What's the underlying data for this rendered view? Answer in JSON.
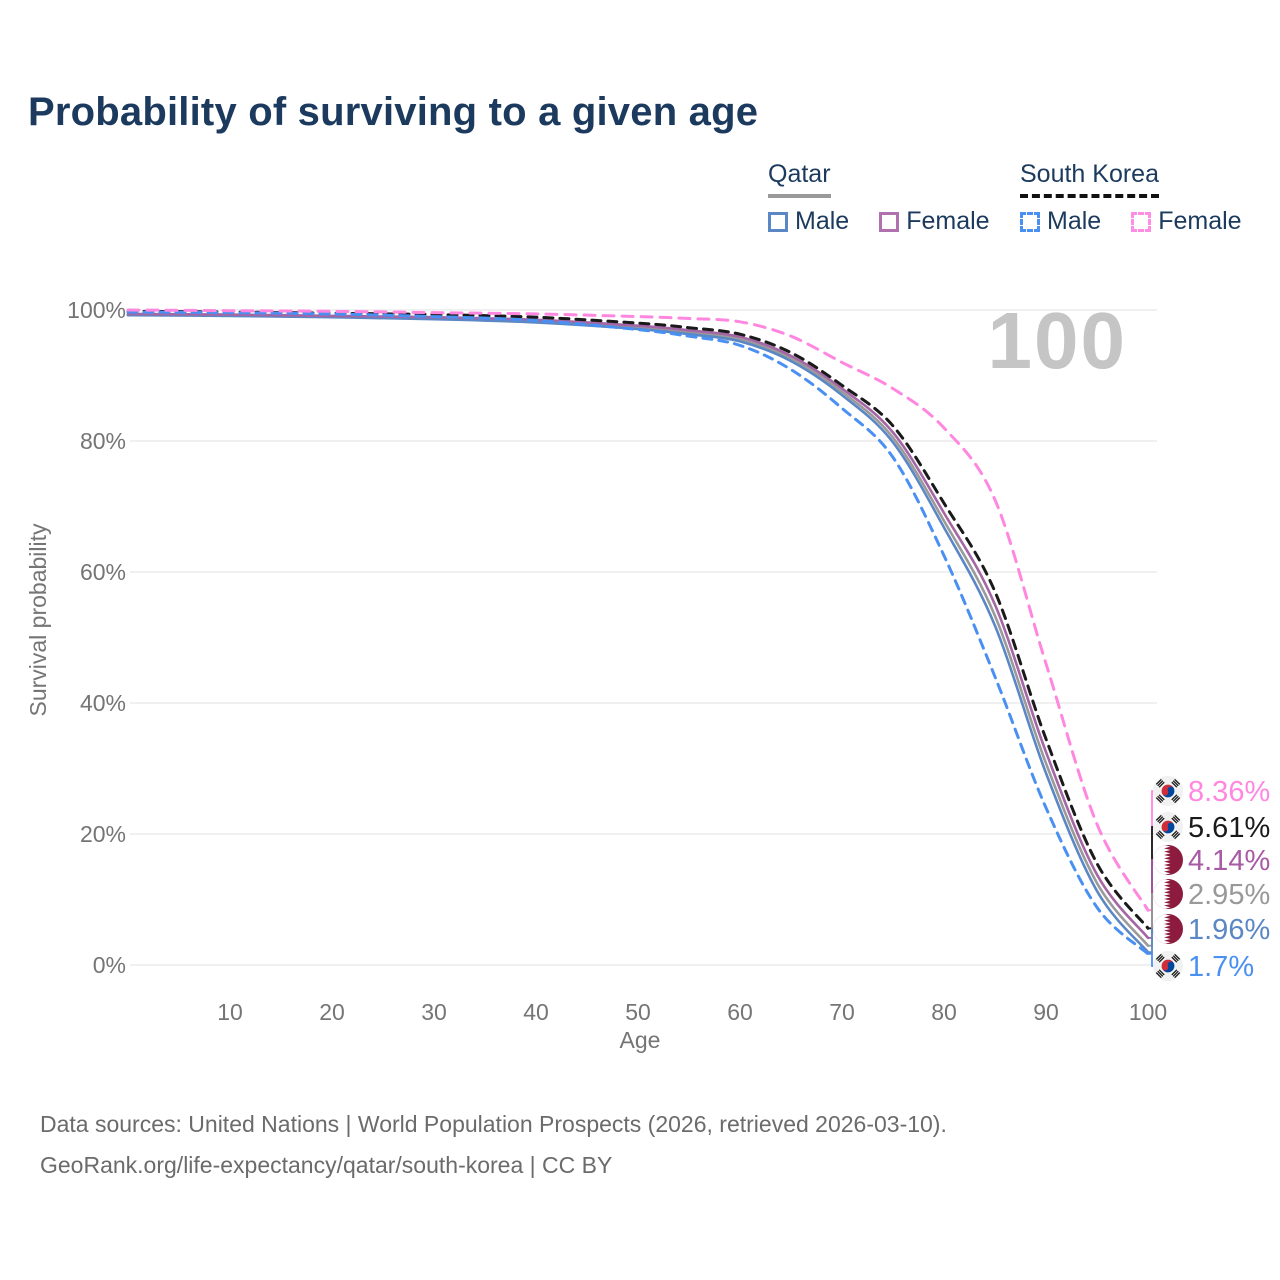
{
  "title": "Probability of surviving to a given age",
  "legend": {
    "groups": [
      {
        "country": "Qatar",
        "underline_style": "solid",
        "underline_color": "#9a9a9a",
        "items": [
          {
            "label": "Male",
            "color": "#5b87c5",
            "dashed": false
          },
          {
            "label": "Female",
            "color": "#b072ae",
            "dashed": false
          }
        ]
      },
      {
        "country": "South Korea",
        "underline_style": "dashed",
        "underline_color": "#111111",
        "items": [
          {
            "label": "Male",
            "color": "#4a90f2",
            "dashed": true
          },
          {
            "label": "Female",
            "color": "#ff8de4",
            "dashed": true
          }
        ]
      }
    ]
  },
  "watermark": "100",
  "axes": {
    "y_label": "Survival probability",
    "x_label": "Age",
    "y_ticks": [
      "0%",
      "20%",
      "40%",
      "60%",
      "80%",
      "100%"
    ],
    "x_ticks": [
      "10",
      "20",
      "30",
      "40",
      "50",
      "60",
      "70",
      "80",
      "90",
      "100"
    ]
  },
  "chart_data": {
    "type": "line",
    "title": "Probability of surviving to a given age",
    "xlabel": "Age",
    "ylabel": "Survival probability",
    "xlim": [
      0,
      100
    ],
    "ylim": [
      0,
      100
    ],
    "grid": "horizontal",
    "legend_position": "top-right",
    "x": [
      0,
      10,
      20,
      30,
      40,
      50,
      55,
      60,
      65,
      70,
      75,
      80,
      85,
      90,
      95,
      100
    ],
    "series": [
      {
        "name": "Qatar combined",
        "country": "Qatar",
        "color": "#9a9a9a",
        "dashed": false,
        "values": [
          99.3,
          99.2,
          99.0,
          98.7,
          98.3,
          97.3,
          96.6,
          95.5,
          92.6,
          87.5,
          80.5,
          67.8,
          53.3,
          30.8,
          12.5,
          2.95
        ]
      },
      {
        "name": "Qatar Male",
        "country": "Qatar",
        "color": "#5b87c5",
        "dashed": false,
        "values": [
          99.2,
          99.1,
          98.9,
          98.6,
          98.1,
          97.1,
          96.3,
          95.2,
          92.2,
          87.0,
          79.8,
          66.8,
          51.8,
          29.3,
          11.3,
          1.96
        ]
      },
      {
        "name": "Qatar Female",
        "country": "Qatar",
        "color": "#a566a5",
        "dashed": false,
        "values": [
          99.4,
          99.3,
          99.1,
          98.9,
          98.5,
          97.6,
          96.9,
          95.9,
          93.0,
          88.0,
          81.3,
          69.0,
          55.0,
          32.5,
          13.8,
          4.14
        ]
      },
      {
        "name": "South Korea combined",
        "country": "South Korea",
        "color": "#1a1a1a",
        "dashed": true,
        "values": [
          99.8,
          99.7,
          99.5,
          99.3,
          98.9,
          98.0,
          97.3,
          96.3,
          93.5,
          88.5,
          82.3,
          70.5,
          57.0,
          34.5,
          15.5,
          5.61
        ]
      },
      {
        "name": "South Korea Male",
        "country": "South Korea",
        "color": "#4a90f2",
        "dashed": true,
        "values": [
          99.7,
          99.6,
          99.4,
          99.0,
          98.4,
          97.0,
          96.0,
          94.6,
          90.9,
          85.0,
          77.5,
          62.5,
          44.0,
          24.0,
          8.8,
          1.7
        ]
      },
      {
        "name": "South Korea Female",
        "country": "South Korea",
        "color": "#ff87e0",
        "dashed": true,
        "values": [
          100,
          99.9,
          99.8,
          99.6,
          99.4,
          99.0,
          98.7,
          98.2,
          96.0,
          92.0,
          88.0,
          82.0,
          71.0,
          46.0,
          21.5,
          8.36
        ]
      }
    ],
    "end_labels": [
      {
        "flag": "south-korea",
        "value": "8.36%",
        "color": "#ff87e0",
        "p": 8.36
      },
      {
        "flag": "south-korea",
        "value": "5.61%",
        "color": "#1a1a1a",
        "p": 5.61
      },
      {
        "flag": "qatar",
        "value": "4.14%",
        "color": "#a85aa4",
        "p": 4.14
      },
      {
        "flag": "qatar",
        "value": "2.95%",
        "color": "#999999",
        "p": 2.95
      },
      {
        "flag": "qatar",
        "value": "1.96%",
        "color": "#5b87c5",
        "p": 1.96
      },
      {
        "flag": "south-korea",
        "value": "1.7%",
        "color": "#4a90f2",
        "p": 1.7
      }
    ]
  },
  "footer": {
    "line1": "Data sources: United Nations | World Population Prospects (2026, retrieved 2026-03-10).",
    "line2": "GeoRank.org/life-expectancy/qatar/south-korea | CC BY"
  }
}
